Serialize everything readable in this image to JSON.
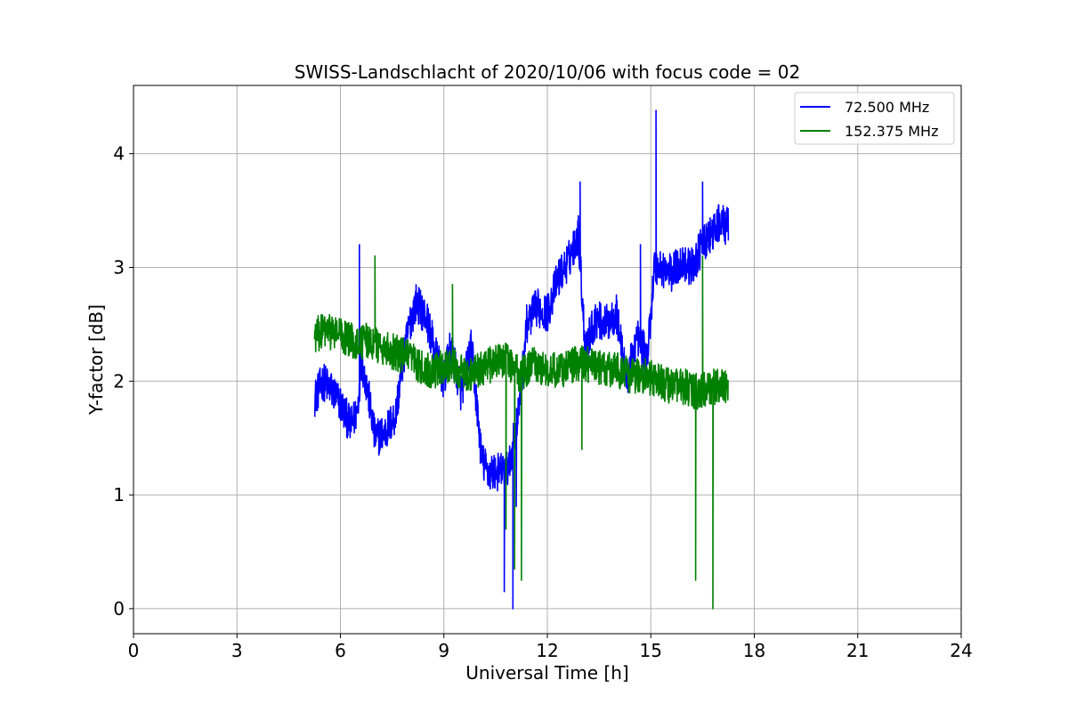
{
  "chart_data": {
    "type": "line",
    "title": "SWISS-Landschlacht of 2020/10/06 with focus code = 02",
    "xlabel": "Universal Time [h]",
    "ylabel": "Y-factor [dB]",
    "xlim": [
      0,
      24
    ],
    "ylim": [
      -0.22,
      4.6
    ],
    "xticks": [
      0,
      3,
      6,
      9,
      12,
      15,
      18,
      21,
      24
    ],
    "yticks": [
      0,
      1,
      2,
      3,
      4
    ],
    "grid": true,
    "legend_position": "top-right",
    "series": [
      {
        "name": " 72.500 MHz",
        "color": "#0000ff",
        "noise": 0.17,
        "x": [
          5.25,
          5.5,
          5.8,
          6.0,
          6.3,
          6.5,
          6.6,
          6.8,
          7.0,
          7.3,
          7.6,
          7.8,
          8.0,
          8.2,
          8.5,
          8.8,
          9.0,
          9.2,
          9.5,
          9.8,
          10.1,
          10.3,
          10.6,
          10.9,
          11.2,
          11.4,
          11.7,
          12.0,
          12.3,
          12.6,
          12.9,
          13.1,
          13.4,
          13.7,
          14.0,
          14.3,
          14.6,
          14.9,
          15.1,
          15.3,
          15.6,
          15.9,
          16.2,
          16.5,
          16.8,
          17.0,
          17.25
        ],
        "y": [
          1.85,
          2.0,
          1.9,
          1.8,
          1.6,
          1.75,
          2.2,
          1.9,
          1.5,
          1.55,
          1.7,
          2.15,
          2.5,
          2.7,
          2.55,
          2.2,
          2.0,
          2.3,
          1.9,
          2.3,
          1.3,
          1.2,
          1.2,
          1.25,
          1.8,
          2.5,
          2.65,
          2.6,
          2.9,
          3.05,
          3.3,
          2.3,
          2.55,
          2.5,
          2.6,
          2.0,
          2.4,
          2.2,
          3.0,
          3.0,
          2.95,
          3.05,
          3.0,
          3.2,
          3.3,
          3.4,
          3.35
        ],
        "spikes": [
          [
            6.55,
            3.2
          ],
          [
            10.75,
            0.15
          ],
          [
            11.0,
            0.0
          ],
          [
            11.1,
            0.9
          ],
          [
            12.95,
            3.75
          ],
          [
            15.15,
            4.38
          ],
          [
            16.5,
            3.75
          ],
          [
            14.7,
            3.2
          ]
        ]
      },
      {
        "name": "152.375 MHz",
        "color": "#008000",
        "noise": 0.16,
        "x": [
          5.25,
          5.6,
          6.0,
          6.4,
          6.8,
          7.2,
          7.6,
          8.0,
          8.4,
          8.8,
          9.2,
          9.6,
          10.0,
          10.4,
          10.8,
          11.2,
          11.6,
          12.0,
          12.4,
          12.8,
          13.2,
          13.6,
          14.0,
          14.4,
          14.8,
          15.2,
          15.6,
          16.0,
          16.4,
          16.8,
          17.25
        ],
        "y": [
          2.4,
          2.45,
          2.4,
          2.35,
          2.35,
          2.3,
          2.25,
          2.2,
          2.1,
          2.1,
          2.15,
          2.05,
          2.1,
          2.15,
          2.2,
          2.05,
          2.15,
          2.1,
          2.1,
          2.15,
          2.15,
          2.1,
          2.1,
          2.05,
          2.05,
          2.0,
          1.95,
          1.95,
          1.9,
          1.95,
          1.95
        ],
        "spikes": [
          [
            7.0,
            3.1
          ],
          [
            9.25,
            2.85
          ],
          [
            10.8,
            0.7
          ],
          [
            11.05,
            0.35
          ],
          [
            11.25,
            0.25
          ],
          [
            13.0,
            1.4
          ],
          [
            16.3,
            0.25
          ],
          [
            16.8,
            0.0
          ],
          [
            16.5,
            3.1
          ]
        ]
      }
    ]
  }
}
